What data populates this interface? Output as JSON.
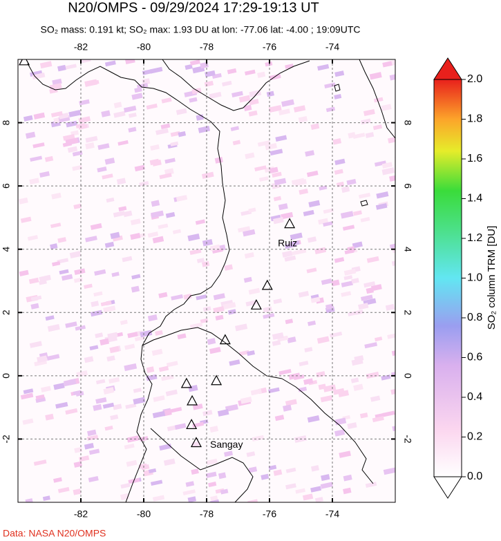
{
  "title": "N20/OMPS - 09/29/2024 17:29-19:13 UT",
  "subtitle": "SO₂ mass: 0.191 kt; SO₂ max: 1.93 DU at lon: -77.06 lat: -4.00 ; 19:09UTC",
  "map": {
    "xlim": [
      -84,
      -72
    ],
    "ylim": [
      -4,
      10
    ],
    "xticks": [
      -82,
      -80,
      -78,
      -76,
      -74
    ],
    "yticks": [
      -2,
      0,
      2,
      4,
      6,
      8
    ],
    "volcanoes": [
      {
        "label": "Ruiz",
        "lon": -75.36,
        "lat": 4.81
      },
      {
        "lon": -76.07,
        "lat": 2.86
      },
      {
        "lon": -76.42,
        "lat": 2.24
      },
      {
        "lon": -77.41,
        "lat": 1.14
      },
      {
        "lon": -77.69,
        "lat": -0.15
      },
      {
        "lon": -78.64,
        "lat": -0.24
      },
      {
        "lon": -78.46,
        "lat": -0.79
      },
      {
        "lon": -78.48,
        "lat": -1.54
      },
      {
        "label": "Sangay",
        "lon": -78.33,
        "lat": -2.11
      },
      {
        "lon": -83.8,
        "lat": 9.96
      }
    ]
  },
  "colorbar": {
    "label": "SO₂ column TRM [DU]",
    "lim": [
      0,
      2
    ],
    "ticks": [
      {
        "value": 0,
        "label": "0.0"
      },
      0.2,
      0.4,
      0.6,
      0.8,
      {
        "value": 1,
        "label": "1.0"
      },
      1.2,
      1.4,
      1.6,
      1.8,
      {
        "value": 2,
        "label": "2.0"
      }
    ]
  },
  "source": "Data: NASA N20/OMPS"
}
